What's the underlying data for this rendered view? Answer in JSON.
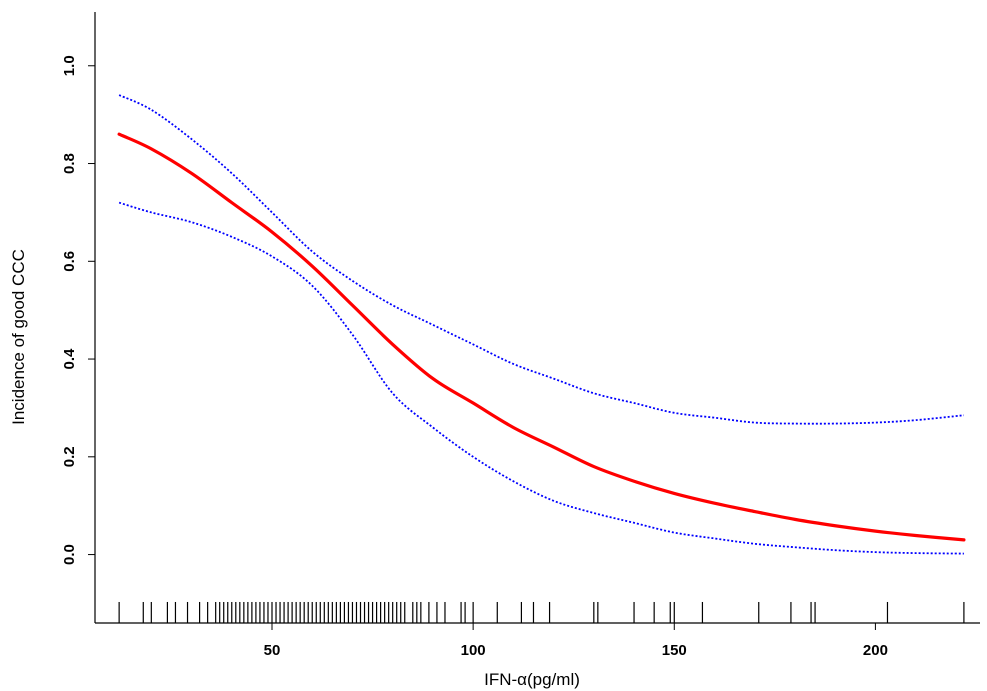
{
  "chart_data": {
    "type": "line",
    "title": "",
    "xlabel": "IFN-α(pg/ml)",
    "ylabel": "Incidence of good CCC",
    "xlim": [
      6,
      226
    ],
    "ylim": [
      -0.14,
      1.11
    ],
    "x_ticks": [
      {
        "value": 50,
        "label": "50"
      },
      {
        "value": 100,
        "label": "100"
      },
      {
        "value": 150,
        "label": "150"
      },
      {
        "value": 200,
        "label": "200"
      }
    ],
    "y_ticks": [
      {
        "value": 0.0,
        "label": "0.0"
      },
      {
        "value": 0.2,
        "label": "0.2"
      },
      {
        "value": 0.4,
        "label": "0.4"
      },
      {
        "value": 0.6,
        "label": "0.6"
      },
      {
        "value": 0.8,
        "label": "0.8"
      },
      {
        "value": 1.0,
        "label": "1.0"
      }
    ],
    "grid": false,
    "legend": "none",
    "series": [
      {
        "role": "estimate",
        "style": "solid",
        "color": "#ff0000",
        "points": [
          [
            12,
            0.86
          ],
          [
            20,
            0.83
          ],
          [
            30,
            0.78
          ],
          [
            40,
            0.72
          ],
          [
            50,
            0.66
          ],
          [
            60,
            0.59
          ],
          [
            70,
            0.51
          ],
          [
            80,
            0.43
          ],
          [
            90,
            0.36
          ],
          [
            100,
            0.31
          ],
          [
            110,
            0.26
          ],
          [
            120,
            0.22
          ],
          [
            130,
            0.18
          ],
          [
            140,
            0.15
          ],
          [
            150,
            0.125
          ],
          [
            160,
            0.105
          ],
          [
            170,
            0.088
          ],
          [
            180,
            0.072
          ],
          [
            190,
            0.059
          ],
          [
            200,
            0.048
          ],
          [
            210,
            0.039
          ],
          [
            222,
            0.03
          ]
        ]
      },
      {
        "role": "upper-ci",
        "style": "dotted",
        "color": "#0000ff",
        "points": [
          [
            12,
            0.94
          ],
          [
            20,
            0.91
          ],
          [
            30,
            0.85
          ],
          [
            40,
            0.78
          ],
          [
            50,
            0.7
          ],
          [
            60,
            0.62
          ],
          [
            70,
            0.56
          ],
          [
            80,
            0.51
          ],
          [
            90,
            0.47
          ],
          [
            100,
            0.43
          ],
          [
            110,
            0.39
          ],
          [
            120,
            0.36
          ],
          [
            130,
            0.33
          ],
          [
            140,
            0.31
          ],
          [
            150,
            0.29
          ],
          [
            160,
            0.28
          ],
          [
            170,
            0.27
          ],
          [
            180,
            0.268
          ],
          [
            190,
            0.268
          ],
          [
            200,
            0.27
          ],
          [
            210,
            0.275
          ],
          [
            222,
            0.285
          ]
        ]
      },
      {
        "role": "lower-ci",
        "style": "dotted",
        "color": "#0000ff",
        "points": [
          [
            12,
            0.72
          ],
          [
            20,
            0.7
          ],
          [
            30,
            0.68
          ],
          [
            40,
            0.65
          ],
          [
            50,
            0.61
          ],
          [
            60,
            0.55
          ],
          [
            70,
            0.45
          ],
          [
            80,
            0.33
          ],
          [
            90,
            0.26
          ],
          [
            100,
            0.2
          ],
          [
            110,
            0.15
          ],
          [
            120,
            0.11
          ],
          [
            130,
            0.085
          ],
          [
            140,
            0.065
          ],
          [
            150,
            0.045
          ],
          [
            160,
            0.033
          ],
          [
            170,
            0.022
          ],
          [
            180,
            0.015
          ],
          [
            190,
            0.009
          ],
          [
            200,
            0.005
          ],
          [
            210,
            0.003
          ],
          [
            222,
            0.002
          ]
        ]
      }
    ],
    "rug": [
      12,
      18,
      20,
      24,
      26,
      29,
      32,
      34,
      36,
      37,
      38,
      39,
      40,
      41,
      42,
      43,
      44,
      45,
      46,
      47,
      48,
      49,
      50,
      51,
      52,
      53,
      54,
      55,
      56,
      57,
      58,
      59,
      60,
      61,
      62,
      63,
      64,
      65,
      66,
      67,
      68,
      69,
      70,
      71,
      72,
      73,
      74,
      75,
      76,
      77,
      78,
      79,
      80,
      81,
      82,
      83,
      85,
      86,
      87,
      89,
      91,
      93,
      97,
      98,
      100,
      106,
      112,
      115,
      119,
      130,
      131,
      140,
      145,
      149,
      150,
      157,
      171,
      179,
      184,
      185,
      203,
      222
    ]
  }
}
